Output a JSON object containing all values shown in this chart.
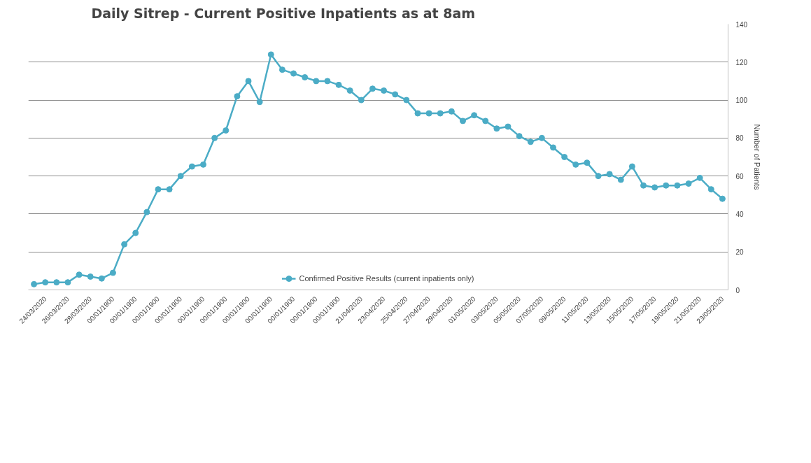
{
  "chart_data": {
    "type": "line",
    "title": "Daily Sitrep - Current Positive Inpatients as at 8am",
    "ylabel": "Number of Patients",
    "categories": [
      null,
      "24/03/2020",
      null,
      "26/03/2020",
      null,
      "28/03/2020",
      null,
      "00/01/1900",
      null,
      "00/01/1900",
      null,
      "00/01/1900",
      null,
      "00/01/1900",
      null,
      "00/01/1900",
      null,
      "00/01/1900",
      null,
      "00/01/1900",
      null,
      "00/01/1900",
      null,
      "00/01/1900",
      null,
      "00/01/1900",
      null,
      "00/01/1900",
      null,
      "21/04/2020",
      null,
      "23/04/2020",
      null,
      "25/04/2020",
      null,
      "27/04/2020",
      null,
      "29/04/2020",
      null,
      "01/05/2020",
      null,
      "03/05/2020",
      null,
      "05/05/2020",
      null,
      "07/05/2020",
      null,
      "09/05/2020",
      null,
      "11/05/2020",
      null,
      "13/05/2020",
      null,
      "15/05/2020",
      null,
      "17/05/2020",
      null,
      "19/05/2020",
      null,
      "21/05/2020",
      null,
      "23/05/2020"
    ],
    "series": [
      {
        "name": "Confirmed Positive Results (current inpatients only)",
        "color": "#4bacc6",
        "values": [
          3,
          4,
          4,
          4,
          8,
          7,
          6,
          9,
          24,
          30,
          41,
          53,
          53,
          60,
          65,
          66,
          80,
          84,
          102,
          110,
          99,
          124,
          116,
          114,
          112,
          110,
          110,
          108,
          105,
          100,
          106,
          105,
          103,
          100,
          93,
          93,
          93,
          94,
          89,
          92,
          89,
          85,
          86,
          81,
          78,
          80,
          75,
          70,
          66,
          67,
          60,
          61,
          58,
          65,
          55,
          54,
          55,
          55,
          56,
          59,
          53,
          48
        ]
      }
    ],
    "ylim": [
      0,
      140
    ],
    "yticks": [
      0,
      20,
      40,
      60,
      80,
      100,
      120,
      140
    ],
    "grid": "y",
    "legend": "bottom",
    "marker": "circle",
    "line_style": "solid"
  }
}
